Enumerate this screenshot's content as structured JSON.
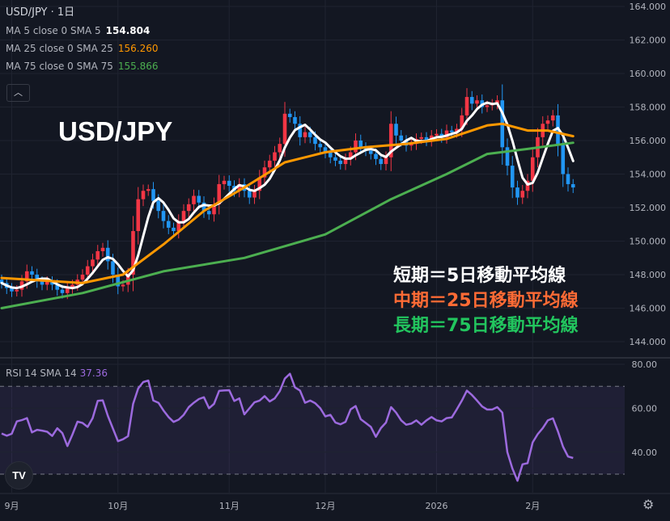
{
  "header": {
    "symbol": "USD/JPY",
    "interval": "1日",
    "ma": [
      {
        "label": "MA 5 close 0 SMA 5",
        "value": "154.804",
        "color": "#ffffff"
      },
      {
        "label": "MA 25 close 0 SMA 25",
        "value": "156.260",
        "color": "#ff9800"
      },
      {
        "label": "MA 75 close 0 SMA 75",
        "value": "155.866",
        "color": "#4caf50"
      }
    ],
    "collapse_icon": "chevron-up-icon"
  },
  "annotations": {
    "title": "USD/JPY",
    "notes": [
      {
        "text": "短期＝5日移動平均線",
        "color": "#ffffff"
      },
      {
        "text": "中期＝25日移動平均線",
        "color": "#ff6b35"
      },
      {
        "text": "長期＝75日移動平均線",
        "color": "#22c55e"
      }
    ]
  },
  "rsi_legend": {
    "label": "RSI 14 SMA 14",
    "value": "37.36"
  },
  "colors": {
    "background": "#131722",
    "up": "#f23645",
    "down": "#2196f3",
    "rsi": "#9c6ade",
    "grid": "#1f2330"
  },
  "chart_data": [
    {
      "type": "candlestick",
      "title": "USD/JPY",
      "ylim": [
        143,
        165
      ],
      "yticks": [
        "164.000",
        "162.000",
        "160.000",
        "158.000",
        "156.000",
        "154.000",
        "152.000",
        "150.000",
        "148.000",
        "146.000",
        "144.000"
      ],
      "xticks": [
        {
          "label": "9月",
          "bar": 2
        },
        {
          "label": "10月",
          "bar": 23
        },
        {
          "label": "11月",
          "bar": 45
        },
        {
          "label": "12月",
          "bar": 64
        },
        {
          "label": "2026",
          "bar": 86
        },
        {
          "label": "2月",
          "bar": 105
        }
      ],
      "grid": true,
      "close": [
        147.5,
        147.2,
        147.0,
        147.1,
        147.6,
        148.2,
        148.0,
        147.6,
        147.4,
        147.6,
        147.4,
        147.1,
        146.9,
        147.2,
        147.4,
        147.7,
        148.0,
        148.5,
        148.9,
        149.4,
        149.6,
        148.8,
        148.0,
        147.3,
        147.4,
        148.0,
        150.6,
        152.5,
        153.0,
        153.1,
        152.4,
        151.8,
        151.2,
        150.8,
        150.6,
        151.2,
        151.8,
        152.2,
        152.7,
        152.3,
        151.8,
        151.6,
        152.2,
        153.4,
        153.6,
        153.3,
        153.0,
        153.4,
        153.0,
        152.6,
        153.0,
        153.8,
        154.4,
        154.8,
        155.3,
        155.8,
        157.6,
        157.4,
        157.0,
        156.2,
        156.5,
        156.2,
        155.8,
        155.6,
        155.3,
        155.0,
        154.8,
        154.6,
        154.9,
        155.3,
        156.0,
        155.6,
        155.4,
        155.2,
        154.9,
        154.6,
        155.0,
        157.0,
        156.3,
        156.0,
        155.7,
        155.8,
        156.1,
        156.2,
        156.0,
        156.3,
        156.4,
        156.2,
        156.6,
        156.5,
        156.7,
        157.5,
        158.6,
        158.2,
        158.4,
        158.0,
        158.1,
        158.2,
        158.4,
        155.6,
        154.5,
        153.2,
        152.6,
        153.0,
        153.6,
        155.0,
        156.2,
        157.0,
        157.2,
        157.5,
        155.8,
        154.0,
        153.4,
        153.2
      ],
      "series": [
        {
          "name": "MA 5",
          "color": "#ffffff",
          "computed_from": "close",
          "period": 5
        },
        {
          "name": "MA 25",
          "color": "#ff9800",
          "points": [
            [
              0,
              147.8
            ],
            [
              16,
              147.5
            ],
            [
              24,
              148.0
            ],
            [
              32,
              149.8
            ],
            [
              40,
              151.8
            ],
            [
              48,
              153.2
            ],
            [
              56,
              154.7
            ],
            [
              64,
              155.3
            ],
            [
              72,
              155.6
            ],
            [
              80,
              155.8
            ],
            [
              88,
              156.1
            ],
            [
              96,
              156.9
            ],
            [
              99,
              157.0
            ],
            [
              104,
              156.6
            ],
            [
              108,
              156.6
            ],
            [
              113,
              156.26
            ]
          ]
        },
        {
          "name": "MA 75",
          "color": "#4caf50",
          "points": [
            [
              0,
              146.0
            ],
            [
              16,
              146.9
            ],
            [
              32,
              148.2
            ],
            [
              48,
              149.0
            ],
            [
              64,
              150.4
            ],
            [
              77,
              152.5
            ],
            [
              88,
              154.0
            ],
            [
              96,
              155.2
            ],
            [
              104,
              155.5
            ],
            [
              113,
              155.87
            ]
          ]
        }
      ]
    },
    {
      "type": "line",
      "title": "RSI 14 SMA 14",
      "ylim": [
        20,
        82
      ],
      "yticks": [
        "80.00",
        "60.00",
        "40.00"
      ],
      "bands": [
        30,
        70
      ],
      "values": [
        48.5,
        47.5,
        48.4,
        54,
        54.6,
        55.5,
        49,
        50.2,
        49.8,
        49.3,
        47.4,
        50.9,
        48.7,
        42.8,
        48,
        53.9,
        53.3,
        51.5,
        55.5,
        63.4,
        63.6,
        56.5,
        50.8,
        45,
        45.9,
        47.3,
        62,
        69,
        71.9,
        72.6,
        63.5,
        62.5,
        59,
        56,
        53.8,
        54.8,
        57,
        60.5,
        62.5,
        64.2,
        65,
        60,
        62,
        67.9,
        68.1,
        68.2,
        63.3,
        64.5,
        57.2,
        60,
        62.7,
        63.5,
        65.5,
        63.1,
        64.5,
        67.8,
        73.5,
        75.7,
        69.5,
        68,
        62.5,
        63.5,
        62.3,
        60,
        56.3,
        57,
        53.5,
        52.7,
        53.8,
        59.5,
        61,
        55,
        53.3,
        51.5,
        47,
        51,
        53.5,
        60.5,
        58,
        54.5,
        52.5,
        53,
        54.5,
        52.5,
        54.5,
        56,
        54.5,
        54,
        55.5,
        55.8,
        59.5,
        63.5,
        68,
        66,
        63.5,
        60.8,
        59.4,
        59.4,
        60.5,
        58,
        40,
        32.5,
        27,
        34.5,
        35,
        44.5,
        48.2,
        51,
        54.5,
        55.4,
        49.5,
        42.5,
        38,
        37.36
      ]
    }
  ],
  "footer": {
    "logo": "TV",
    "settings_icon": "gear-icon"
  }
}
